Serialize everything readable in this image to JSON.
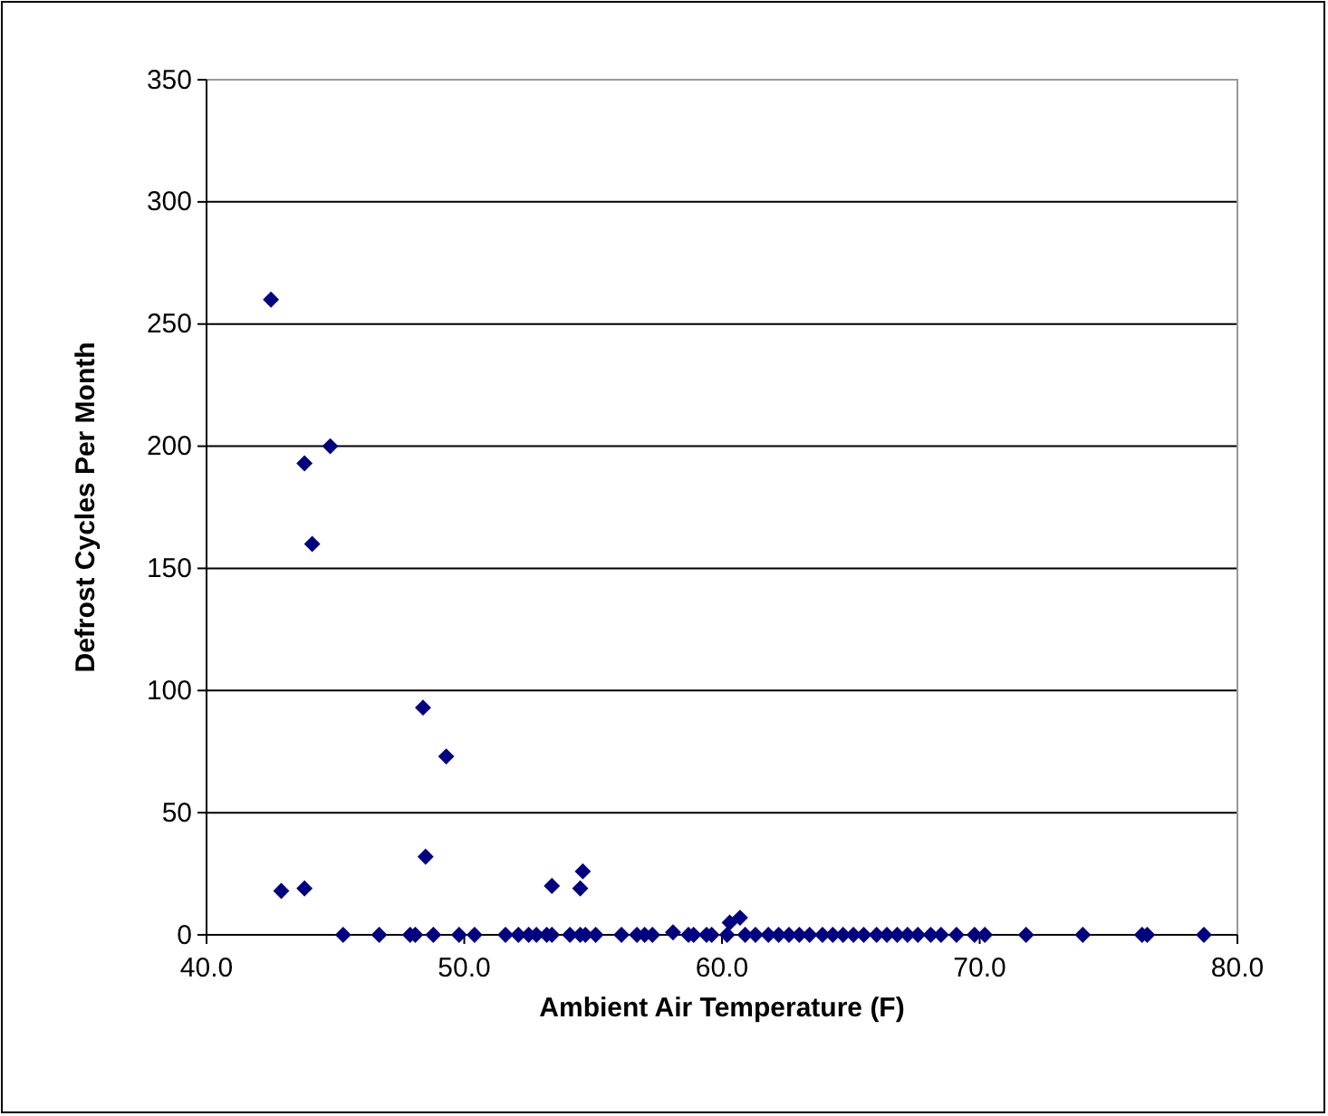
{
  "chart_data": {
    "type": "scatter",
    "xlabel": "Ambient Air Temperature (F)",
    "ylabel": "Defrost Cycles Per Month",
    "xlim": [
      40,
      80
    ],
    "xticks": [
      {
        "value": 40,
        "label": "40.0"
      },
      {
        "value": 50,
        "label": "50.0"
      },
      {
        "value": 60,
        "label": "60.0"
      },
      {
        "value": 70,
        "label": "70.0"
      },
      {
        "value": 80,
        "label": "80.0"
      }
    ],
    "ylim": [
      0,
      350
    ],
    "yticks": [
      0,
      50,
      100,
      150,
      200,
      250,
      300,
      350
    ],
    "grid": "y",
    "marker": "diamond",
    "series": [
      {
        "color": "#000080",
        "x": [
          42.5,
          43.8,
          44.8,
          44.1,
          48.4,
          49.3,
          48.5,
          42.9,
          43.8,
          53.4,
          54.5,
          54.6,
          60.3,
          60.7,
          45.3,
          46.7,
          47.9,
          48.1,
          48.8,
          49.8,
          50.4,
          51.6,
          52.1,
          52.5,
          52.8,
          53.2,
          53.4,
          54.1,
          54.5,
          54.7,
          55.1,
          56.1,
          56.7,
          57.0,
          57.3,
          58.1,
          58.7,
          58.9,
          59.4,
          59.6,
          60.2,
          60.9,
          61.3,
          61.8,
          62.2,
          62.6,
          63.0,
          63.4,
          63.9,
          64.3,
          64.7,
          65.1,
          65.5,
          66.0,
          66.4,
          66.8,
          67.2,
          67.6,
          68.1,
          68.5,
          69.1,
          69.8,
          70.2,
          71.8,
          74.0,
          76.3,
          76.5,
          78.7
        ],
        "values": [
          260,
          193,
          200,
          160,
          93,
          73,
          32,
          18,
          19,
          20,
          19,
          26,
          5,
          7,
          0,
          0,
          0,
          0,
          0,
          0,
          0,
          0,
          0,
          0,
          0,
          0,
          0,
          0,
          0,
          0,
          0,
          0,
          0,
          0,
          0,
          1,
          0,
          0,
          0,
          0,
          0,
          0,
          0,
          0,
          0,
          0,
          0,
          0,
          0,
          0,
          0,
          0,
          0,
          0,
          0,
          0,
          0,
          0,
          0,
          0,
          0,
          0,
          0,
          0,
          0,
          0,
          0,
          0
        ]
      }
    ]
  }
}
